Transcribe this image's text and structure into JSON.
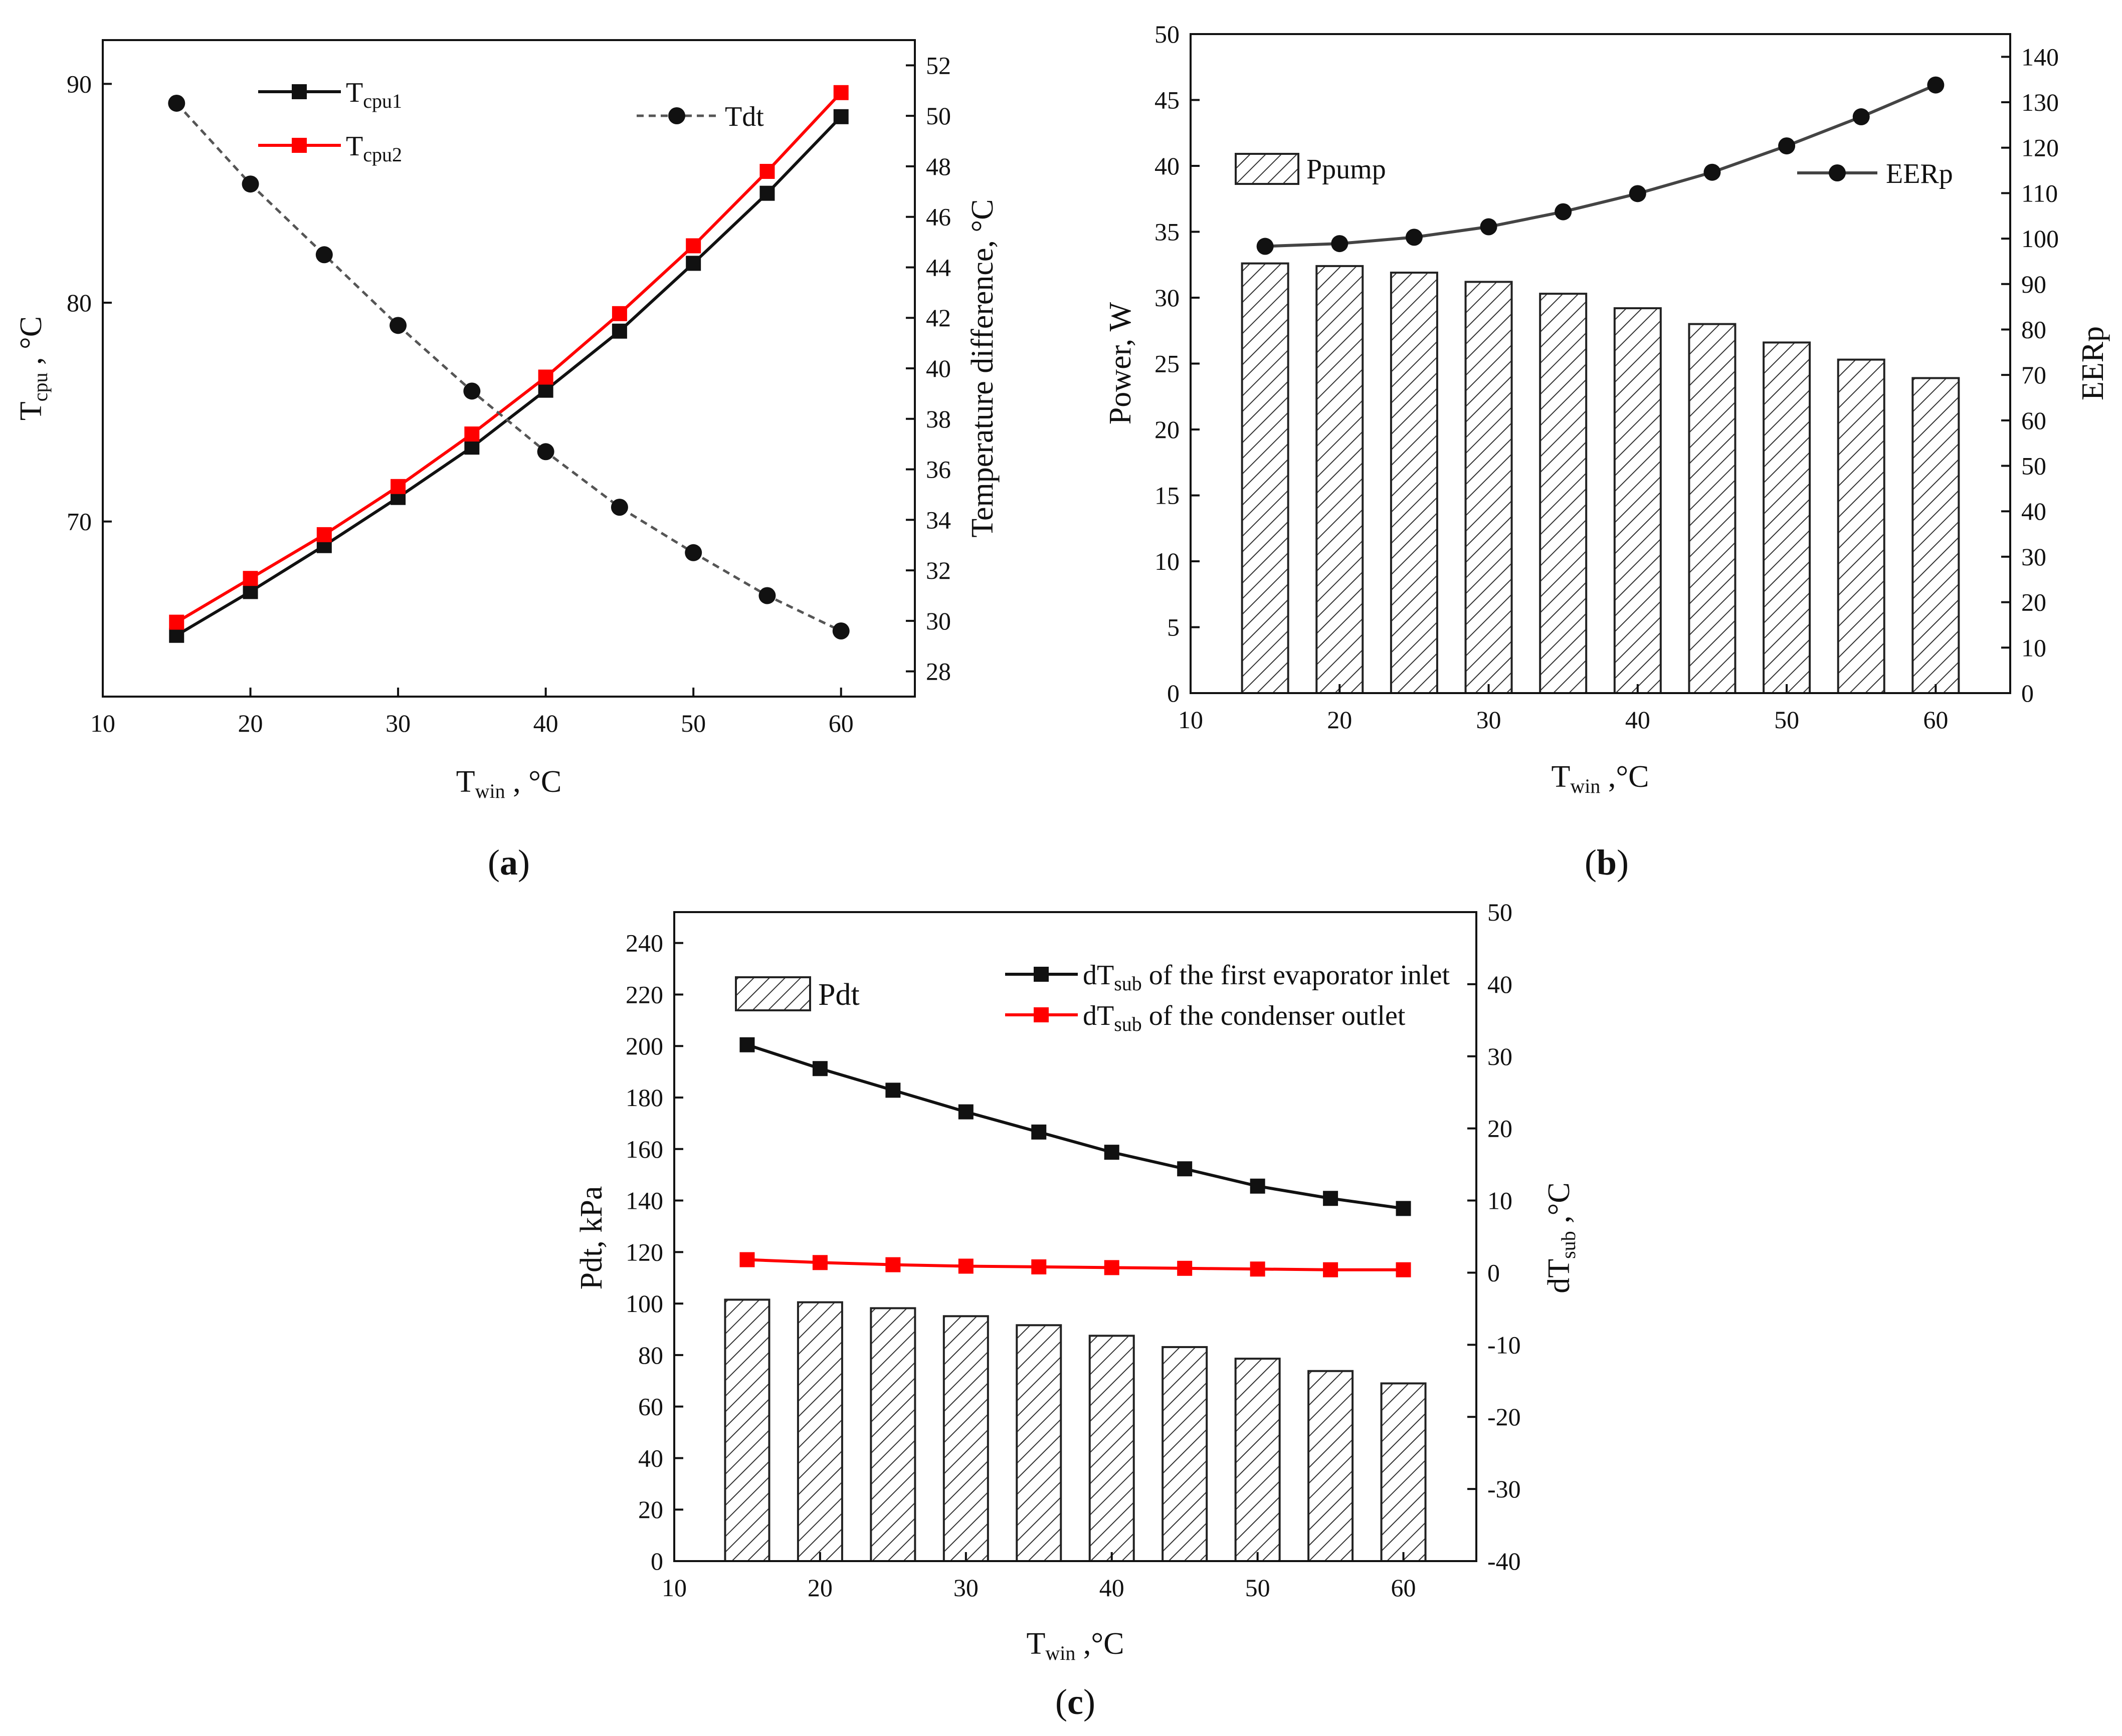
{
  "colors": {
    "black": "#111111",
    "red": "#ff0000",
    "tdt": "#555555",
    "curve_b": "#444444",
    "bar_stroke": "#222222"
  },
  "chart_data": [
    {
      "id": "a",
      "panel_label": "a",
      "type": "line",
      "x": [
        15,
        20,
        25,
        30,
        35,
        40,
        45,
        50,
        55,
        60
      ],
      "xlim": [
        10,
        65
      ],
      "xticks": [
        10,
        20,
        30,
        40,
        50,
        60
      ],
      "xlabel": {
        "main": "T",
        "sub": "win",
        "tail": " , °C"
      },
      "ylabel_left": {
        "main": "T",
        "sub": "cpu",
        "tail": " , °C"
      },
      "ylabel_right": {
        "text": "Temperature difference, °C"
      },
      "ylim_left": [
        62,
        92
      ],
      "yticks_left": [
        70,
        80,
        90
      ],
      "ylim_right": [
        27,
        53
      ],
      "yticks_right": [
        28,
        30,
        32,
        34,
        36,
        38,
        40,
        42,
        44,
        46,
        48,
        50,
        52
      ],
      "series": [
        {
          "name": "Tcpu1",
          "label_main": "T",
          "label_sub": "cpu1",
          "axis": "left",
          "marker": "square",
          "color": "#111111",
          "dashed": false,
          "values": [
            64.8,
            66.8,
            68.9,
            71.1,
            73.4,
            76.0,
            78.7,
            81.8,
            85.0,
            88.5
          ]
        },
        {
          "name": "Tcpu2",
          "label_main": "T",
          "label_sub": "cpu2",
          "axis": "left",
          "marker": "square",
          "color": "#ff0000",
          "dashed": false,
          "values": [
            65.4,
            67.4,
            69.4,
            71.6,
            74.0,
            76.6,
            79.5,
            82.6,
            86.0,
            89.6
          ]
        },
        {
          "name": "Tdt",
          "label_main": "Tdt",
          "label_sub": "",
          "axis": "right",
          "marker": "circle",
          "color": "#555555",
          "dashed": true,
          "values": [
            50.5,
            47.3,
            44.5,
            41.7,
            39.1,
            36.7,
            34.5,
            32.7,
            31.0,
            29.6
          ]
        }
      ]
    },
    {
      "id": "b",
      "panel_label": "b",
      "type": "bar",
      "x": [
        15,
        20,
        25,
        30,
        35,
        40,
        45,
        50,
        55,
        60
      ],
      "xlim": [
        10,
        65
      ],
      "xticks": [
        10,
        20,
        30,
        40,
        50,
        60
      ],
      "xlabel": {
        "main": "T",
        "sub": "win",
        "tail": " ,°C"
      },
      "ylabel_left": {
        "text": "Power, W"
      },
      "ylabel_right": {
        "text": "EERp"
      },
      "ylim_left": [
        0,
        50
      ],
      "yticks_left": [
        0,
        5,
        10,
        15,
        20,
        25,
        30,
        35,
        40,
        45,
        50
      ],
      "ylim_right": [
        0,
        145
      ],
      "yticks_right": [
        0,
        10,
        20,
        30,
        40,
        50,
        60,
        70,
        80,
        90,
        100,
        110,
        120,
        130,
        140
      ],
      "series": [
        {
          "name": "Ppump",
          "axis": "left",
          "kind": "bar",
          "values": [
            32.6,
            32.4,
            31.9,
            31.2,
            30.3,
            29.2,
            28.0,
            26.6,
            25.3,
            23.9
          ]
        },
        {
          "name": "EERp",
          "axis": "right",
          "kind": "line",
          "marker": "circle",
          "color": "#444444",
          "values": [
            98.3,
            98.9,
            100.3,
            102.6,
            105.9,
            109.9,
            114.6,
            120.4,
            126.8,
            133.8
          ]
        }
      ]
    },
    {
      "id": "c",
      "panel_label": "c",
      "type": "bar",
      "x": [
        15,
        20,
        25,
        30,
        35,
        40,
        45,
        50,
        55,
        60
      ],
      "xlim": [
        10,
        65
      ],
      "xticks": [
        10,
        20,
        30,
        40,
        50,
        60
      ],
      "xlabel": {
        "main": "T",
        "sub": "win",
        "tail": " ,°C"
      },
      "ylabel_left": {
        "text": "Pdt, kPa"
      },
      "ylabel_right": {
        "main": "dT",
        "sub": "sub",
        "tail": " ,°C"
      },
      "ylim_left": [
        0,
        252
      ],
      "yticks_left": [
        0,
        20,
        40,
        60,
        80,
        100,
        120,
        140,
        160,
        180,
        200,
        220,
        240
      ],
      "ylim_right": [
        -40,
        50
      ],
      "yticks_right": [
        -40,
        -30,
        -20,
        -10,
        0,
        10,
        20,
        30,
        40,
        50
      ],
      "series": [
        {
          "name": "Pdt",
          "axis": "left",
          "kind": "bar",
          "values": [
            101.5,
            100.5,
            98.2,
            95.1,
            91.6,
            87.5,
            83.1,
            78.6,
            73.8,
            69.0
          ]
        },
        {
          "name": "dTsub of the first evaporator inlet",
          "label_main": "dT",
          "label_sub": "sub",
          "label_tail": " of the first evaporator inlet",
          "axis": "right",
          "kind": "line",
          "marker": "square",
          "color": "#111111",
          "values": [
            31.6,
            28.3,
            25.3,
            22.3,
            19.5,
            16.7,
            14.4,
            12.0,
            10.3,
            8.9
          ]
        },
        {
          "name": "dTsub of the condenser outlet",
          "label_main": "dT",
          "label_sub": "sub",
          "label_tail": " of the condenser outlet",
          "axis": "right",
          "kind": "line",
          "marker": "square",
          "color": "#ff0000",
          "values": [
            1.8,
            1.4,
            1.1,
            0.9,
            0.8,
            0.7,
            0.6,
            0.5,
            0.4,
            0.4
          ]
        }
      ]
    }
  ]
}
